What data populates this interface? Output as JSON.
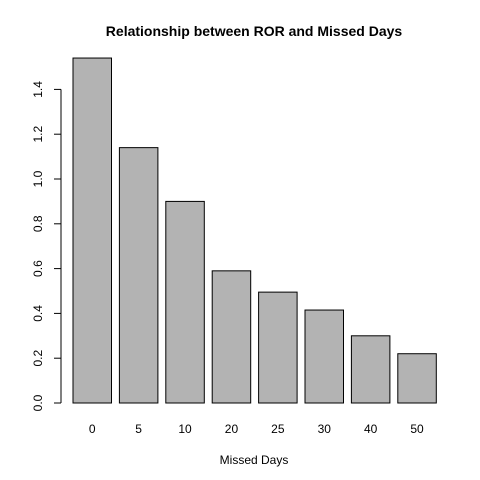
{
  "chart_data": {
    "type": "bar",
    "title": "Relationship between ROR and Missed Days",
    "xlabel": "Missed Days",
    "ylabel": "",
    "categories": [
      "0",
      "5",
      "10",
      "20",
      "25",
      "30",
      "40",
      "50"
    ],
    "values": [
      1.54,
      1.14,
      0.9,
      0.59,
      0.495,
      0.415,
      0.3,
      0.22
    ],
    "ylim": [
      0,
      1.54
    ],
    "yticks": [
      "0.0",
      "0.2",
      "0.4",
      "0.6",
      "0.8",
      "1.0",
      "1.2",
      "1.4"
    ],
    "grid": false,
    "bar_color": "#b3b3b3"
  }
}
